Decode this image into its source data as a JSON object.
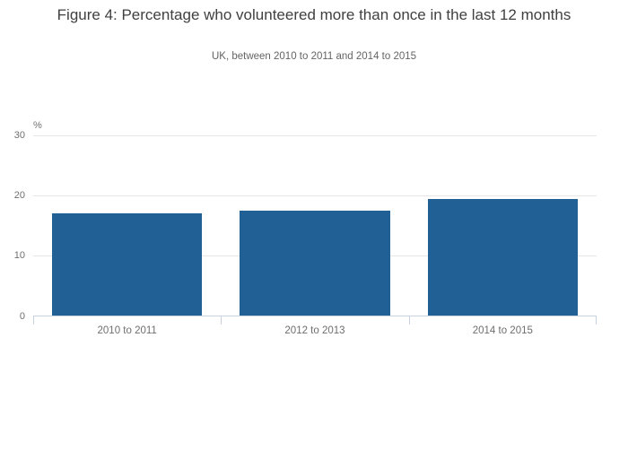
{
  "chart_data": {
    "type": "bar",
    "title": "Figure 4: Percentage who volunteered more than once in the last 12 months",
    "subtitle": "UK, between 2010 to 2011 and 2014 to 2015",
    "categories": [
      "2010 to 2011",
      "2012 to 2013",
      "2014 to 2015"
    ],
    "values": [
      17.1,
      17.5,
      19.4
    ],
    "xlabel": "",
    "ylabel": "%",
    "ylim": [
      0,
      30
    ],
    "yticks": [
      30,
      20,
      10,
      0
    ],
    "grid": true,
    "legend": "none",
    "bar_color": "#206095",
    "gridline_color": "#e6e6e6",
    "axis_color": "#c8d1de",
    "tick_label_color": "#707070",
    "category_label_color": "#6e6e6e"
  }
}
